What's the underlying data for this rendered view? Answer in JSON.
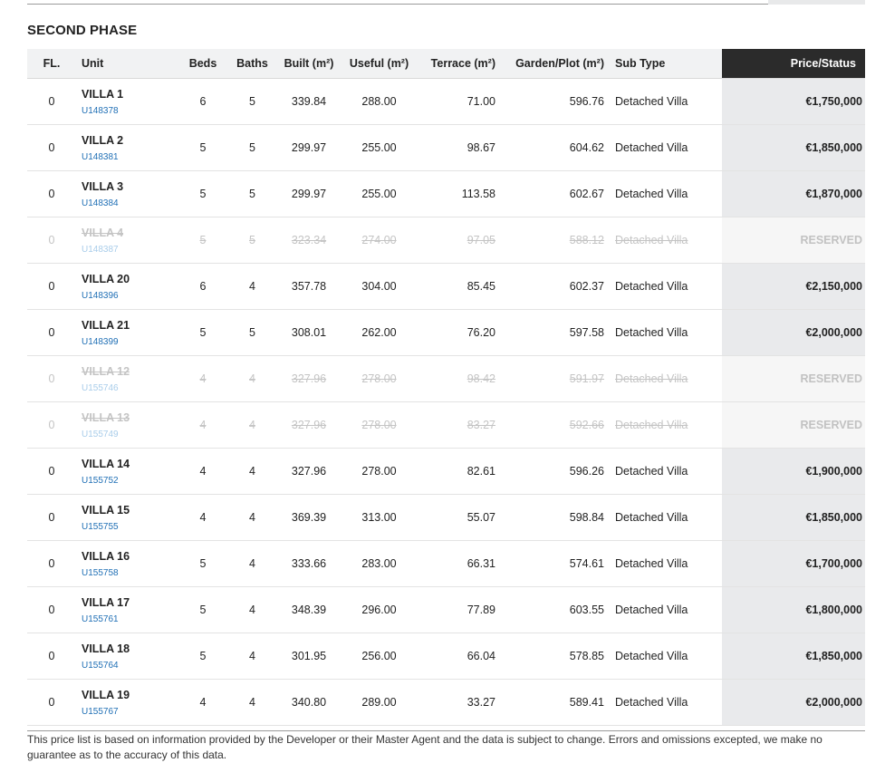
{
  "section": {
    "title": "SECOND PHASE"
  },
  "table": {
    "headers": {
      "fl": "FL.",
      "unit": "Unit",
      "beds": "Beds",
      "baths": "Baths",
      "built": "Built (m²)",
      "useful": "Useful (m²)",
      "terrace": "Terrace (m²)",
      "garden": "Garden/Plot (m²)",
      "subtype": "Sub Type",
      "price": "Price/Status"
    },
    "rows": [
      {
        "fl": "0",
        "name": "VILLA 1",
        "ref": "U148378",
        "beds": "6",
        "baths": "5",
        "built": "339.84",
        "useful": "288.00",
        "terrace": "71.00",
        "garden": "596.76",
        "subtype": "Detached Villa",
        "price": "€1,750,000",
        "reserved": false
      },
      {
        "fl": "0",
        "name": "VILLA 2",
        "ref": "U148381",
        "beds": "5",
        "baths": "5",
        "built": "299.97",
        "useful": "255.00",
        "terrace": "98.67",
        "garden": "604.62",
        "subtype": "Detached Villa",
        "price": "€1,850,000",
        "reserved": false
      },
      {
        "fl": "0",
        "name": "VILLA 3",
        "ref": "U148384",
        "beds": "5",
        "baths": "5",
        "built": "299.97",
        "useful": "255.00",
        "terrace": "113.58",
        "garden": "602.67",
        "subtype": "Detached Villa",
        "price": "€1,870,000",
        "reserved": false
      },
      {
        "fl": "0",
        "name": "VILLA 4",
        "ref": "U148387",
        "beds": "5",
        "baths": "5",
        "built": "323.34",
        "useful": "274.00",
        "terrace": "97.05",
        "garden": "588.12",
        "subtype": "Detached Villa",
        "price": "RESERVED",
        "reserved": true
      },
      {
        "fl": "0",
        "name": "VILLA 20",
        "ref": "U148396",
        "beds": "6",
        "baths": "4",
        "built": "357.78",
        "useful": "304.00",
        "terrace": "85.45",
        "garden": "602.37",
        "subtype": "Detached Villa",
        "price": "€2,150,000",
        "reserved": false
      },
      {
        "fl": "0",
        "name": "VILLA 21",
        "ref": "U148399",
        "beds": "5",
        "baths": "5",
        "built": "308.01",
        "useful": "262.00",
        "terrace": "76.20",
        "garden": "597.58",
        "subtype": "Detached Villa",
        "price": "€2,000,000",
        "reserved": false
      },
      {
        "fl": "0",
        "name": "VILLA 12",
        "ref": "U155746",
        "beds": "4",
        "baths": "4",
        "built": "327.96",
        "useful": "278.00",
        "terrace": "98.42",
        "garden": "591.97",
        "subtype": "Detached Villa",
        "price": "RESERVED",
        "reserved": true
      },
      {
        "fl": "0",
        "name": "VILLA 13",
        "ref": "U155749",
        "beds": "4",
        "baths": "4",
        "built": "327.96",
        "useful": "278.00",
        "terrace": "83.27",
        "garden": "592.66",
        "subtype": "Detached Villa",
        "price": "RESERVED",
        "reserved": true
      },
      {
        "fl": "0",
        "name": "VILLA 14",
        "ref": "U155752",
        "beds": "4",
        "baths": "4",
        "built": "327.96",
        "useful": "278.00",
        "terrace": "82.61",
        "garden": "596.26",
        "subtype": "Detached Villa",
        "price": "€1,900,000",
        "reserved": false
      },
      {
        "fl": "0",
        "name": "VILLA 15",
        "ref": "U155755",
        "beds": "4",
        "baths": "4",
        "built": "369.39",
        "useful": "313.00",
        "terrace": "55.07",
        "garden": "598.84",
        "subtype": "Detached Villa",
        "price": "€1,850,000",
        "reserved": false
      },
      {
        "fl": "0",
        "name": "VILLA 16",
        "ref": "U155758",
        "beds": "5",
        "baths": "4",
        "built": "333.66",
        "useful": "283.00",
        "terrace": "66.31",
        "garden": "574.61",
        "subtype": "Detached Villa",
        "price": "€1,700,000",
        "reserved": false
      },
      {
        "fl": "0",
        "name": "VILLA 17",
        "ref": "U155761",
        "beds": "5",
        "baths": "4",
        "built": "348.39",
        "useful": "296.00",
        "terrace": "77.89",
        "garden": "603.55",
        "subtype": "Detached Villa",
        "price": "€1,800,000",
        "reserved": false
      },
      {
        "fl": "0",
        "name": "VILLA 18",
        "ref": "U155764",
        "beds": "5",
        "baths": "4",
        "built": "301.95",
        "useful": "256.00",
        "terrace": "66.04",
        "garden": "578.85",
        "subtype": "Detached Villa",
        "price": "€1,850,000",
        "reserved": false
      },
      {
        "fl": "0",
        "name": "VILLA 19",
        "ref": "U155767",
        "beds": "4",
        "baths": "4",
        "built": "340.80",
        "useful": "289.00",
        "terrace": "33.27",
        "garden": "589.41",
        "subtype": "Detached Villa",
        "price": "€2,000,000",
        "reserved": false
      }
    ]
  },
  "footer": {
    "disclaimer": "This price list is based on information provided by the Developer or their Master Agent and the data is subject to change. Errors and omissions excepted, we make no guarantee as to the accuracy of this data."
  },
  "colors": {
    "price_header_bg": "#2b2b2b",
    "price_cell_bg": "#e9eaec",
    "link": "#1f6fb5",
    "reserved_text": "#c4c4c4"
  }
}
